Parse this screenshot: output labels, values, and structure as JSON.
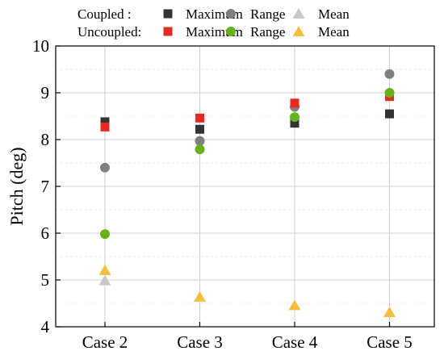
{
  "chart_data": {
    "type": "scatter",
    "categories": [
      "Case 2",
      "Case 3",
      "Case 4",
      "Case 5"
    ],
    "ylabel": "Pitch (deg)",
    "ylim": [
      4,
      10
    ],
    "yticks": [
      "4",
      "5",
      "6",
      "7",
      "8",
      "9",
      "10"
    ],
    "grid": true,
    "legend_position": "top",
    "legend_groups": [
      "Coupled :",
      "Uncoupled:"
    ],
    "series": [
      {
        "name": "Maximum",
        "group": "Coupled",
        "marker": "square",
        "color": "#333333",
        "values": [
          8.38,
          8.22,
          8.35,
          8.55
        ]
      },
      {
        "name": "Range",
        "group": "Coupled",
        "marker": "circle",
        "color": "#7f7f7f",
        "values": [
          7.4,
          7.97,
          8.7,
          9.4
        ]
      },
      {
        "name": "Mean",
        "group": "Coupled",
        "marker": "triangle",
        "color": "#c8c8c8",
        "values": [
          4.99,
          null,
          null,
          null
        ]
      },
      {
        "name": "Maximum",
        "group": "Uncoupled",
        "marker": "square",
        "color": "#e32b22",
        "values": [
          8.27,
          8.46,
          8.78,
          8.92
        ]
      },
      {
        "name": "Range",
        "group": "Uncoupled",
        "marker": "circle",
        "color": "#66b21d",
        "values": [
          5.98,
          7.79,
          8.48,
          9.0
        ]
      },
      {
        "name": "Mean",
        "group": "Uncoupled",
        "marker": "triangle",
        "color": "#f6be41",
        "values": [
          5.21,
          4.64,
          4.46,
          4.31
        ]
      }
    ]
  }
}
